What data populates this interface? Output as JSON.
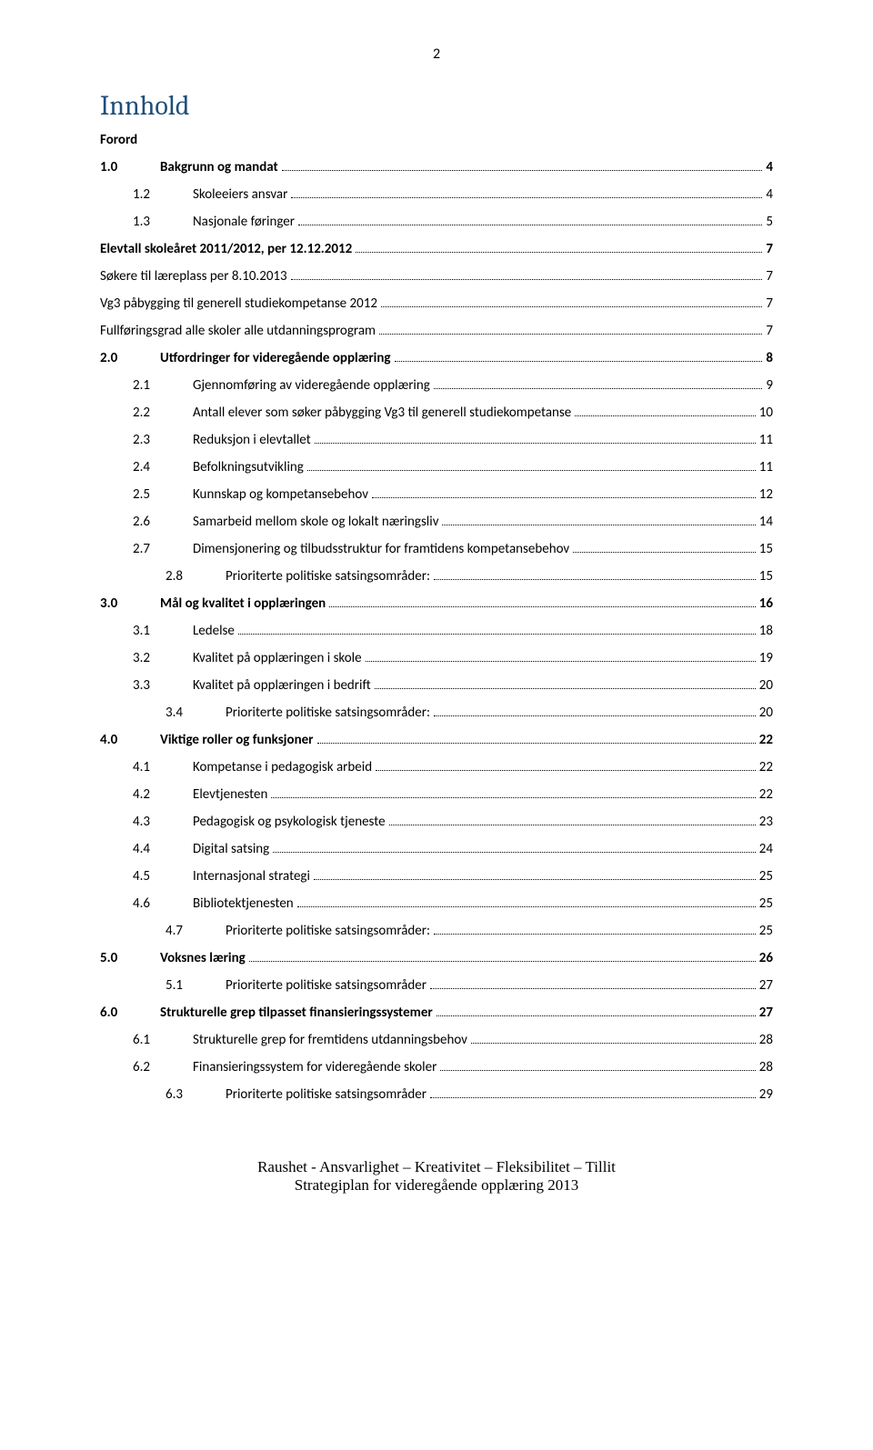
{
  "pageNumber": "2",
  "heading": "Innhold",
  "footer": {
    "line1": "Raushet - Ansvarlighet – Kreativitet – Fleksibilitet – Tillit",
    "line2": "Strategiplan for videregående opplæring 2013"
  },
  "colors": {
    "headingColor": "#1f4e79",
    "textColor": "#000000",
    "dotsColor": "#000000",
    "backgroundColor": "#ffffff"
  },
  "toc": [
    {
      "num": "",
      "label": "Forord",
      "page": "",
      "indent": 0,
      "bold": true,
      "dots": false
    },
    {
      "num": "1.0",
      "label": "Bakgrunn og mandat",
      "page": "4",
      "indent": 0,
      "bold": true,
      "dots": true
    },
    {
      "num": "1.2",
      "label": "Skoleeiers ansvar",
      "page": "4",
      "indent": 1,
      "bold": false,
      "dots": true
    },
    {
      "num": "1.3",
      "label": "Nasjonale føringer",
      "page": "5",
      "indent": 1,
      "bold": false,
      "dots": true
    },
    {
      "num": "",
      "label": "Elevtall skoleåret 2011/2012, per 12.12.2012",
      "page": "7",
      "indent": 0,
      "bold": true,
      "dots": true
    },
    {
      "num": "",
      "label": "Søkere til læreplass per 8.10.2013",
      "page": "7",
      "indent": 0,
      "bold": false,
      "dots": true
    },
    {
      "num": "",
      "label": "Vg3 påbygging til generell studiekompetanse 2012",
      "page": "7",
      "indent": 0,
      "bold": false,
      "dots": true
    },
    {
      "num": "",
      "label": "Fullføringsgrad alle skoler alle utdanningsprogram",
      "page": "7",
      "indent": 0,
      "bold": false,
      "dots": true
    },
    {
      "num": "2.0",
      "label": "Utfordringer for videregående opplæring",
      "page": "8",
      "indent": 0,
      "bold": true,
      "dots": true
    },
    {
      "num": "2.1",
      "label": "Gjennomføring av videregående opplæring",
      "page": "9",
      "indent": 1,
      "bold": false,
      "dots": true
    },
    {
      "num": "2.2",
      "label": "Antall elever som søker påbygging Vg3 til generell studiekompetanse",
      "page": "10",
      "indent": 1,
      "bold": false,
      "dots": true
    },
    {
      "num": "2.3",
      "label": "Reduksjon i elevtallet",
      "page": "11",
      "indent": 1,
      "bold": false,
      "dots": true
    },
    {
      "num": "2.4",
      "label": "Befolkningsutvikling",
      "page": "11",
      "indent": 1,
      "bold": false,
      "dots": true
    },
    {
      "num": "2.5",
      "label": "Kunnskap og kompetansebehov",
      "page": "12",
      "indent": 1,
      "bold": false,
      "dots": true
    },
    {
      "num": "2.6",
      "label": "Samarbeid mellom skole og lokalt næringsliv",
      "page": "14",
      "indent": 1,
      "bold": false,
      "dots": true
    },
    {
      "num": "2.7",
      "label": "Dimensjonering og tilbudsstruktur for framtidens kompetansebehov",
      "page": "15",
      "indent": 1,
      "bold": false,
      "dots": true
    },
    {
      "num": "2.8",
      "label": "Prioriterte politiske satsingsområder:",
      "page": "15",
      "indent": 2,
      "bold": false,
      "dots": true
    },
    {
      "num": "3.0",
      "label": "Mål og kvalitet i opplæringen",
      "page": "16",
      "indent": 0,
      "bold": true,
      "dots": true
    },
    {
      "num": "3.1",
      "label": "Ledelse",
      "page": "18",
      "indent": 1,
      "bold": false,
      "dots": true
    },
    {
      "num": "3.2",
      "label": "Kvalitet på opplæringen i skole",
      "page": "19",
      "indent": 1,
      "bold": false,
      "dots": true
    },
    {
      "num": "3.3",
      "label": "Kvalitet på opplæringen i bedrift",
      "page": "20",
      "indent": 1,
      "bold": false,
      "dots": true
    },
    {
      "num": "3.4",
      "label": "Prioriterte politiske satsingsområder:",
      "page": "20",
      "indent": 2,
      "bold": false,
      "dots": true
    },
    {
      "num": "4.0",
      "label": "Viktige roller og funksjoner",
      "page": "22",
      "indent": 0,
      "bold": true,
      "dots": true
    },
    {
      "num": "4.1",
      "label": "Kompetanse i pedagogisk arbeid",
      "page": "22",
      "indent": 1,
      "bold": false,
      "dots": true
    },
    {
      "num": "4.2",
      "label": "Elevtjenesten",
      "page": "22",
      "indent": 1,
      "bold": false,
      "dots": true
    },
    {
      "num": "4.3",
      "label": "Pedagogisk og psykologisk tjeneste",
      "page": "23",
      "indent": 1,
      "bold": false,
      "dots": true
    },
    {
      "num": "4.4",
      "label": "Digital satsing",
      "page": "24",
      "indent": 1,
      "bold": false,
      "dots": true
    },
    {
      "num": "4.5",
      "label": "Internasjonal strategi",
      "page": "25",
      "indent": 1,
      "bold": false,
      "dots": true
    },
    {
      "num": "4.6",
      "label": "Bibliotektjenesten",
      "page": "25",
      "indent": 1,
      "bold": false,
      "dots": true
    },
    {
      "num": "4.7",
      "label": "Prioriterte politiske satsingsområder:",
      "page": "25",
      "indent": 2,
      "bold": false,
      "dots": true
    },
    {
      "num": "5.0",
      "label": "Voksnes læring",
      "page": "26",
      "indent": 0,
      "bold": true,
      "dots": true
    },
    {
      "num": "5.1",
      "label": "Prioriterte politiske satsingsområder",
      "page": "27",
      "indent": 2,
      "bold": false,
      "dots": true
    },
    {
      "num": "6.0",
      "label": "Strukturelle grep tilpasset finansieringssystemer",
      "page": "27",
      "indent": 0,
      "bold": true,
      "dots": true
    },
    {
      "num": "6.1",
      "label": "Strukturelle grep for fremtidens utdanningsbehov",
      "page": "28",
      "indent": 1,
      "bold": false,
      "dots": true
    },
    {
      "num": "6.2",
      "label": "Finansieringssystem for videregående skoler",
      "page": "28",
      "indent": 1,
      "bold": false,
      "dots": true
    },
    {
      "num": "6.3",
      "label": "Prioriterte politiske satsingsområder",
      "page": "29",
      "indent": 2,
      "bold": false,
      "dots": true
    }
  ]
}
